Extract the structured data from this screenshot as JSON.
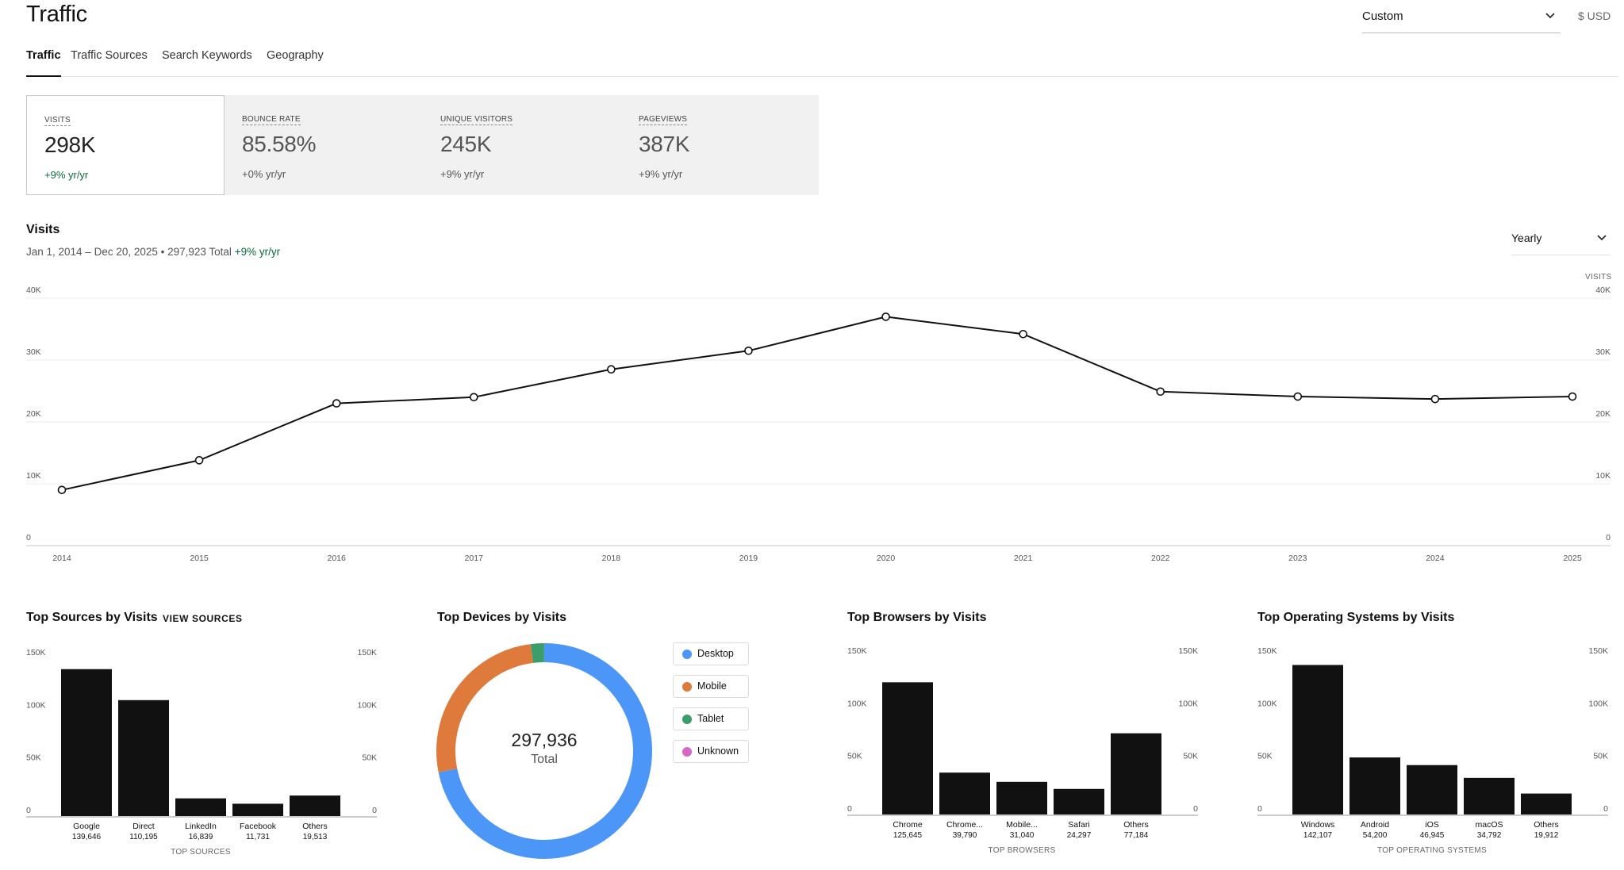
{
  "header": {
    "title": "Traffic",
    "period_select": "Custom",
    "currency": "$ USD"
  },
  "tabs": [
    {
      "label": "Traffic",
      "active": true
    },
    {
      "label": "Traffic Sources",
      "active": false
    },
    {
      "label": "Search Keywords",
      "active": false
    },
    {
      "label": "Geography",
      "active": false
    }
  ],
  "kpis": [
    {
      "label": "VISITS",
      "value": "298K",
      "change": "+9% yr/yr",
      "positive": true,
      "active": true
    },
    {
      "label": "BOUNCE RATE",
      "value": "85.58%",
      "change": "+0% yr/yr",
      "positive": false,
      "active": false
    },
    {
      "label": "UNIQUE VISITORS",
      "value": "245K",
      "change": "+9% yr/yr",
      "positive": false,
      "active": false
    },
    {
      "label": "PAGEVIEWS",
      "value": "387K",
      "change": "+9% yr/yr",
      "positive": false,
      "active": false
    }
  ],
  "visits": {
    "title": "Visits",
    "subtitle": "Jan 1, 2014 – Dec 20, 2025 • 297,923 Total",
    "subtitle_change": "+9% yr/yr",
    "granularity": "Yearly",
    "axis_caption": "VISITS"
  },
  "sources": {
    "title": "Top Sources by Visits",
    "link": "VIEW SOURCES"
  },
  "devices": {
    "title": "Top Devices by Visits",
    "total": "297,936",
    "total_label": "Total",
    "legend": [
      {
        "label": "Desktop",
        "color": "#4b96f7"
      },
      {
        "label": "Mobile",
        "color": "#dd7a3c"
      },
      {
        "label": "Tablet",
        "color": "#3a9d6b"
      },
      {
        "label": "Unknown",
        "color": "#d868c6"
      }
    ]
  },
  "browsers": {
    "title": "Top Browsers by Visits"
  },
  "os": {
    "title": "Top Operating Systems by Visits"
  },
  "chart_data": [
    {
      "type": "line",
      "title": "Visits",
      "ylabel": "VISITS",
      "x": [
        "2014",
        "2015",
        "2016",
        "2017",
        "2018",
        "2019",
        "2020",
        "2021",
        "2022",
        "2023",
        "2024",
        "2025"
      ],
      "values": [
        9000,
        13800,
        23000,
        24000,
        28500,
        31500,
        37000,
        34200,
        24900,
        24100,
        23700,
        24100
      ],
      "ylim": [
        0,
        40000
      ],
      "yticks": [
        "0",
        "10K",
        "20K",
        "30K",
        "40K"
      ],
      "grid": true
    },
    {
      "type": "bar",
      "xlabel": "TOP SOURCES",
      "categories": [
        "Google",
        "Direct",
        "LinkedIn",
        "Facebook",
        "Others"
      ],
      "value_labels": [
        "139,646",
        "110,195",
        "16,839",
        "11,731",
        "19,513"
      ],
      "values": [
        139646,
        110195,
        16839,
        11731,
        19513
      ],
      "ylim": [
        0,
        150000
      ],
      "yticks": [
        "0",
        "50K",
        "100K",
        "150K"
      ]
    },
    {
      "type": "pie",
      "categories": [
        "Desktop",
        "Mobile",
        "Tablet",
        "Unknown"
      ],
      "values": [
        214000,
        78000,
        5900,
        36
      ]
    },
    {
      "type": "bar",
      "xlabel": "TOP BROWSERS",
      "categories": [
        "Chrome",
        "Chrome...",
        "Mobile...",
        "Safari",
        "Others"
      ],
      "value_labels": [
        "125,645",
        "39,790",
        "31,040",
        "24,297",
        "77,184"
      ],
      "values": [
        125645,
        39790,
        31040,
        24297,
        77184
      ],
      "ylim": [
        0,
        150000
      ],
      "yticks": [
        "0",
        "50K",
        "100K",
        "150K"
      ]
    },
    {
      "type": "bar",
      "xlabel": "TOP OPERATING SYSTEMS",
      "categories": [
        "Windows",
        "Android",
        "iOS",
        "macOS",
        "Others"
      ],
      "value_labels": [
        "142,107",
        "54,200",
        "46,945",
        "34,792",
        "19,912"
      ],
      "values": [
        142107,
        54200,
        46945,
        34792,
        19912
      ],
      "ylim": [
        0,
        150000
      ],
      "yticks": [
        "0",
        "50K",
        "100K",
        "150K"
      ]
    }
  ]
}
